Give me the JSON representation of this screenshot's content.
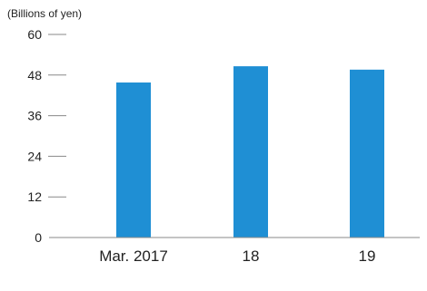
{
  "chart_data": {
    "type": "bar",
    "unit_label": "(Billions of yen)",
    "categories": [
      "Mar. 2017",
      "18",
      "19"
    ],
    "values": [
      45.8,
      50.6,
      49.6
    ],
    "ylim": [
      0,
      60
    ],
    "yticks": [
      0,
      12,
      24,
      36,
      48,
      60
    ],
    "bar_color": "#1f8fd4",
    "axis_color": "#888888",
    "grid": false,
    "legend": "none"
  }
}
